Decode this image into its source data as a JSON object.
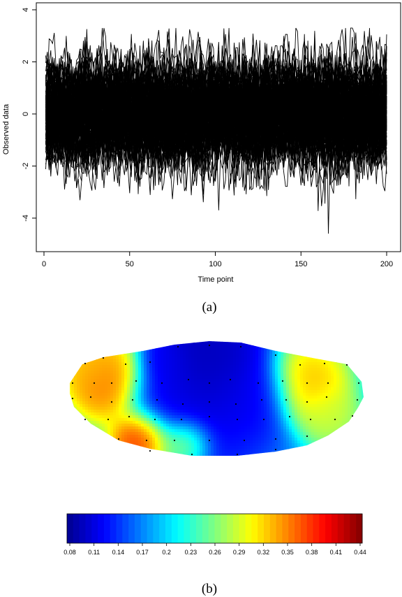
{
  "chart_data": [
    {
      "type": "line",
      "panel_label": "(a)",
      "xlabel": "Time point",
      "ylabel": "Observed data",
      "xlim": [
        0,
        200
      ],
      "ylim": [
        -5,
        4.3
      ],
      "x_ticks": [
        "0",
        "50",
        "100",
        "150",
        "200"
      ],
      "x_tick_values": [
        0,
        50,
        100,
        150,
        200
      ],
      "y_ticks": [
        "-4",
        "-2",
        "0",
        "2",
        "4"
      ],
      "y_tick_values": [
        -4,
        -2,
        0,
        2,
        4
      ],
      "n_series": 120,
      "n_points": 200,
      "series_sd": 1.0,
      "value_range_observed": [
        -4.6,
        3.3
      ],
      "line_color": "#000000",
      "grid": false,
      "legend": "none"
    },
    {
      "type": "heatmap",
      "panel_label": "(b)",
      "description_shape": "topographic scalp map",
      "colorbar_ticks": [
        "0.08",
        "0.11",
        "0.14",
        "0.17",
        "0.2",
        "0.23",
        "0.26",
        "0.29",
        "0.32",
        "0.35",
        "0.38",
        "0.41",
        "0.44"
      ],
      "colorbar_range": [
        0.08,
        0.44
      ],
      "colorbar_colors": [
        "#00008f",
        "#0000ff",
        "#0080ff",
        "#00ffff",
        "#80ff80",
        "#ffff00",
        "#ff8000",
        "#ff0000",
        "#800000"
      ],
      "field_values": {
        "center_top": 0.09,
        "center_mid": 0.12,
        "left_hotspot": 0.37,
        "right_hotspot": 0.34,
        "bottom_left_hotspot": 0.42,
        "background": 0.2
      }
    }
  ]
}
